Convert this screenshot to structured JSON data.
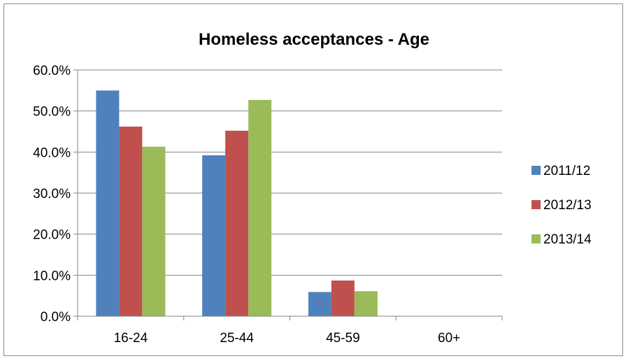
{
  "chart_data": {
    "type": "bar",
    "title": "Homeless acceptances - Age",
    "xlabel": "",
    "ylabel": "",
    "categories": [
      "16-24",
      "25-44",
      "45-59",
      "60+"
    ],
    "series": [
      {
        "name": "2011/12",
        "color": "#4F81BD",
        "values": [
          55.0,
          39.2,
          5.9,
          0.0
        ]
      },
      {
        "name": "2012/13",
        "color": "#C0504D",
        "values": [
          46.2,
          45.2,
          8.7,
          0.0
        ]
      },
      {
        "name": "2013/14",
        "color": "#9BBB59",
        "values": [
          41.3,
          52.7,
          6.1,
          0.0
        ]
      }
    ],
    "ylim": [
      0,
      60
    ],
    "yticks": [
      0,
      10,
      20,
      30,
      40,
      50,
      60
    ],
    "ytick_labels": [
      "0.0%",
      "10.0%",
      "20.0%",
      "30.0%",
      "40.0%",
      "50.0%",
      "60.0%"
    ],
    "grid": true,
    "legend_position": "right"
  }
}
